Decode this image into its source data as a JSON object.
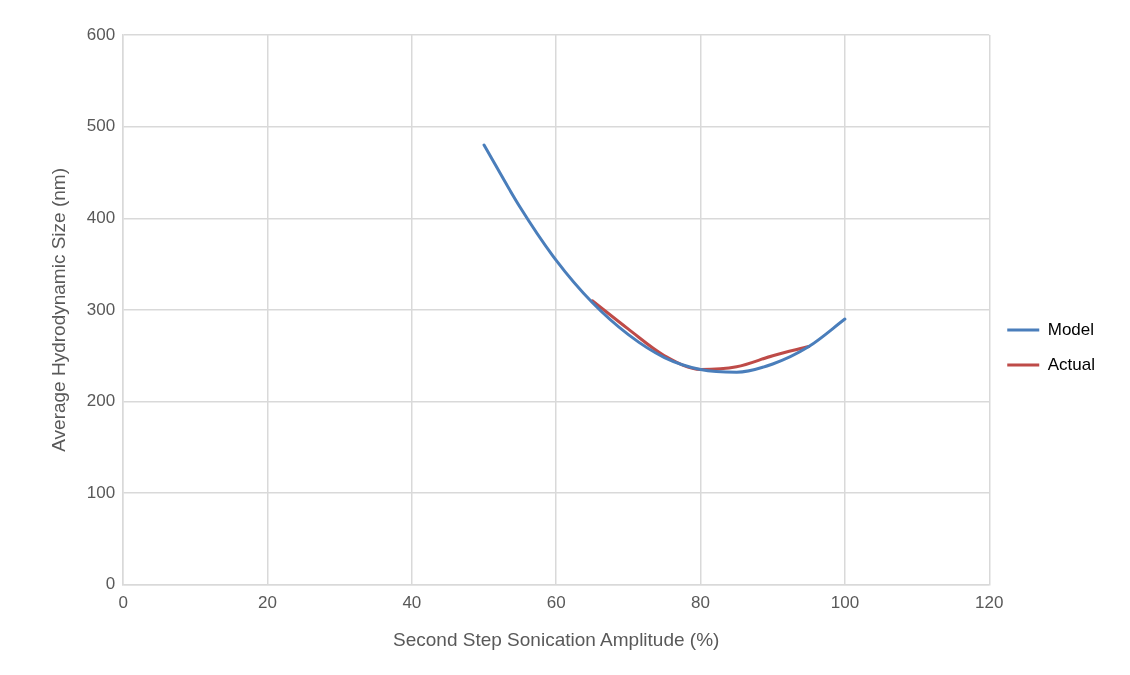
{
  "chart_data": {
    "type": "line",
    "xlabel": "Second Step Sonication Amplitude (%)",
    "ylabel": "Average Hydrodynamic Size (nm)",
    "xlim": [
      0,
      120
    ],
    "xticks": [
      0,
      20,
      40,
      60,
      80,
      100,
      120
    ],
    "ylim": [
      0,
      600
    ],
    "yticks": [
      0,
      100,
      200,
      300,
      400,
      500,
      600
    ],
    "grid": true,
    "legend": "right",
    "marker": "none",
    "series": [
      {
        "name": "Model",
        "color": "#4a7ebb",
        "x": [
          50,
          55,
          60,
          65,
          70,
          75,
          80,
          85,
          90,
          95,
          100
        ],
        "values": [
          480,
          412,
          354,
          308,
          273,
          248,
          235,
          232,
          241,
          260,
          290
        ]
      },
      {
        "name": "Actual",
        "color": "#be4b48",
        "x": [
          65,
          70,
          75,
          80,
          85,
          90,
          95
        ],
        "values": [
          310,
          279,
          250,
          235,
          238,
          250,
          260
        ]
      }
    ]
  }
}
